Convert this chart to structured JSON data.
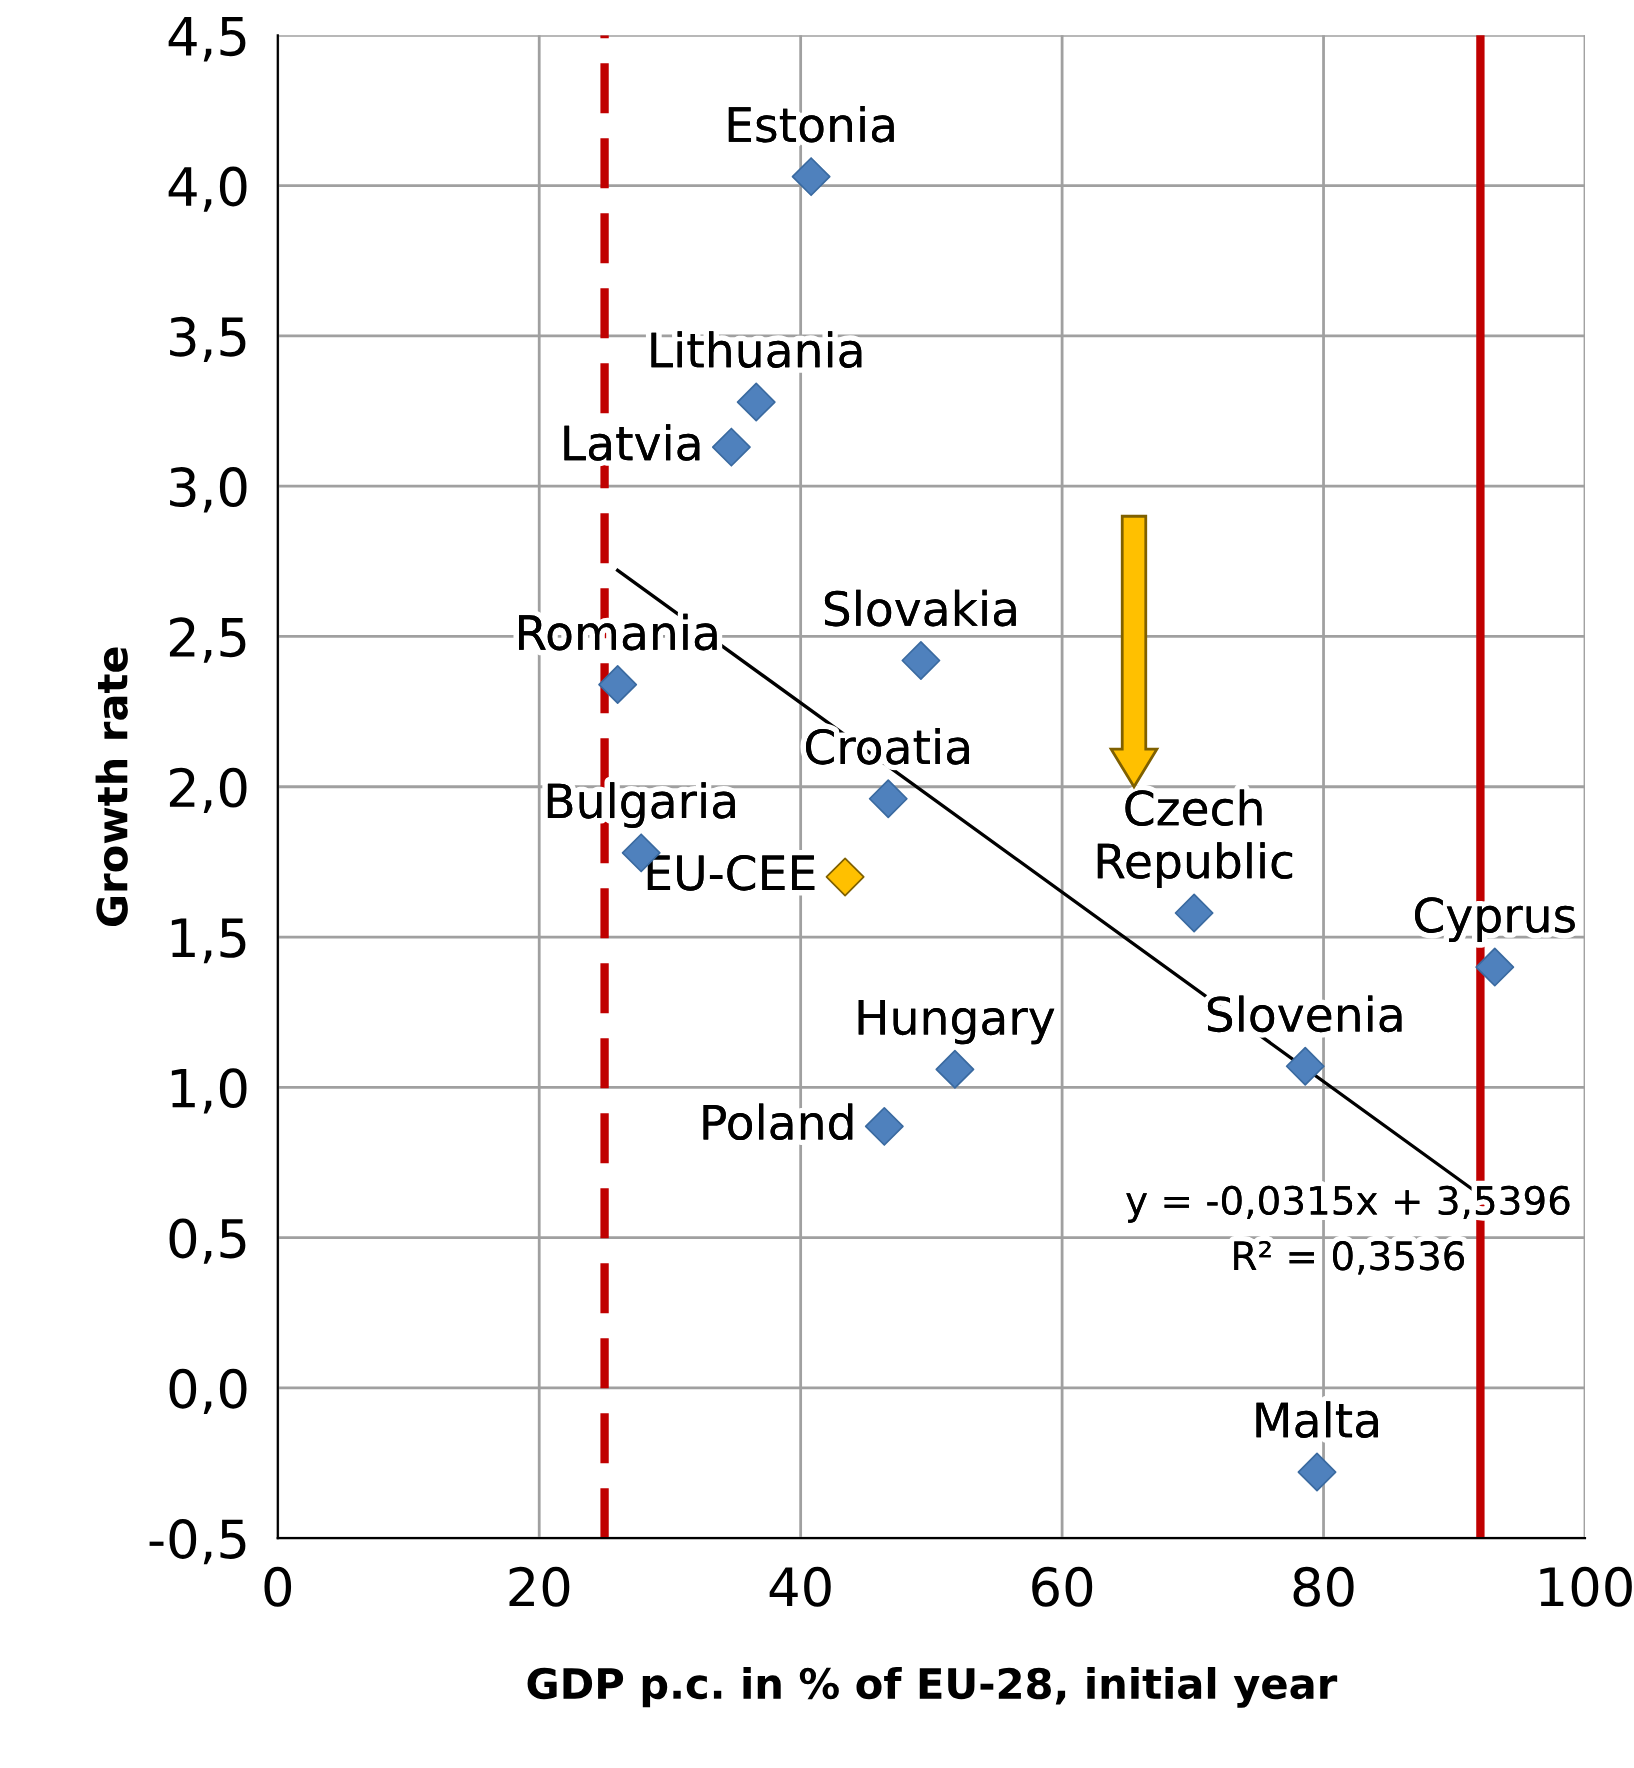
{
  "chart_data": {
    "type": "scatter",
    "xlabel": "GDP p.c. in % of EU-28, initial year",
    "ylabel": "Growth rate",
    "xlim": [
      0,
      100
    ],
    "xticks": [
      0,
      20,
      40,
      60,
      80,
      100
    ],
    "ylim": [
      -0.5,
      4.5
    ],
    "yticks": [
      {
        "value": -0.5,
        "label": "-0,5"
      },
      {
        "value": 0,
        "label": "0,0"
      },
      {
        "value": 0.5,
        "label": "0,5"
      },
      {
        "value": 1.0,
        "label": "1,0"
      },
      {
        "value": 1.5,
        "label": "1,5"
      },
      {
        "value": 2.0,
        "label": "2,0"
      },
      {
        "value": 2.5,
        "label": "2,5"
      },
      {
        "value": 3.0,
        "label": "3,0"
      },
      {
        "value": 3.5,
        "label": "3,5"
      },
      {
        "value": 4.0,
        "label": "4,0"
      },
      {
        "value": 4.5,
        "label": "4,5"
      }
    ],
    "grid": true,
    "marker": "diamond",
    "series": [
      {
        "x": [
          40.8,
          36.6,
          34.7,
          26.0,
          49.2,
          46.7,
          27.8,
          43.4,
          70.1,
          93.1,
          78.6,
          51.8,
          46.4,
          79.5
        ],
        "values": [
          4.03,
          3.28,
          3.13,
          2.34,
          2.42,
          1.96,
          1.78,
          1.7,
          1.58,
          1.4,
          1.07,
          1.06,
          0.87,
          -0.28
        ],
        "colors": [
          "#4f81bd",
          "#4f81bd",
          "#4f81bd",
          "#4f81bd",
          "#4f81bd",
          "#4f81bd",
          "#4f81bd",
          "#ffc000",
          "#4f81bd",
          "#4f81bd",
          "#4f81bd",
          "#4f81bd",
          "#4f81bd",
          "#4f81bd"
        ]
      },
      {
        "type": "line",
        "x": [
          26,
          93
        ],
        "values": [
          2.72,
          0.61
        ],
        "color": "#000000",
        "marker": "none"
      }
    ],
    "ref_lines": [
      {
        "axis": "x",
        "value": 25,
        "color": "#c00000",
        "line_style": "dashed"
      },
      {
        "axis": "x",
        "value": 92,
        "color": "#c00000",
        "line_style": "solid"
      }
    ],
    "annotations": [
      {
        "text": "Estonia",
        "x": 40.8,
        "y": 4.03
      },
      {
        "text": "Lithuania",
        "x": 36.6,
        "y": 3.28
      },
      {
        "text": "Latvia",
        "x": 34.7,
        "y": 3.13
      },
      {
        "text": "Romania",
        "x": 26.0,
        "y": 2.34
      },
      {
        "text": "Slovakia",
        "x": 49.2,
        "y": 2.42
      },
      {
        "text": "Croatia",
        "x": 46.7,
        "y": 1.96
      },
      {
        "text": "Bulgaria",
        "x": 27.8,
        "y": 1.78
      },
      {
        "text": "EU-CEE",
        "x": 43.4,
        "y": 1.7
      },
      {
        "text": "Czech\nRepublic",
        "x": 70.1,
        "y": 1.58
      },
      {
        "text": "Cyprus",
        "x": 93.1,
        "y": 1.4
      },
      {
        "text": "Slovenia",
        "x": 78.6,
        "y": 1.07
      },
      {
        "text": "Hungary",
        "x": 51.8,
        "y": 1.06
      },
      {
        "text": "Poland",
        "x": 46.4,
        "y": 0.87
      },
      {
        "text": "Malta",
        "x": 79.5,
        "y": -0.28
      },
      "y = -0,0315x + 3,5396\nR² = 0,3536"
    ]
  }
}
